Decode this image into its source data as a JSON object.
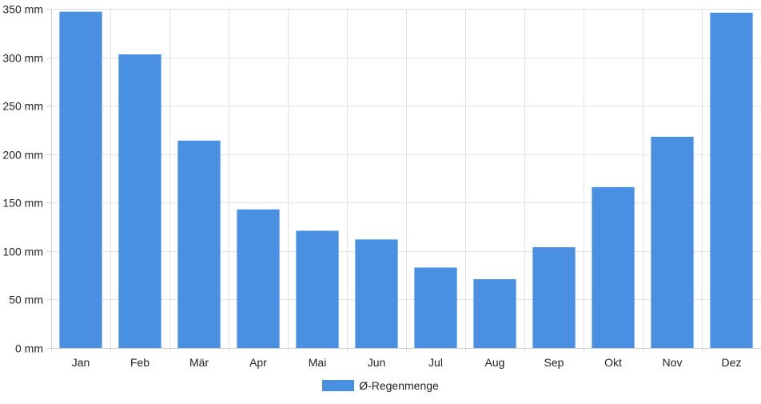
{
  "chart_data": {
    "type": "bar",
    "categories": [
      "Jan",
      "Feb",
      "Mär",
      "Apr",
      "Mai",
      "Jun",
      "Jul",
      "Aug",
      "Sep",
      "Okt",
      "Nov",
      "Dez"
    ],
    "series": [
      {
        "name": "Ø-Regenmenge",
        "values": [
          347,
          303,
          214,
          143,
          121,
          112,
          83,
          71,
          104,
          166,
          218,
          346
        ],
        "color": "#4a90e2"
      }
    ],
    "y_unit": "mm",
    "ylim": [
      0,
      350
    ],
    "y_ticks": [
      0,
      50,
      100,
      150,
      200,
      250,
      300,
      350
    ],
    "grid": true,
    "legend_position": "bottom-center"
  }
}
